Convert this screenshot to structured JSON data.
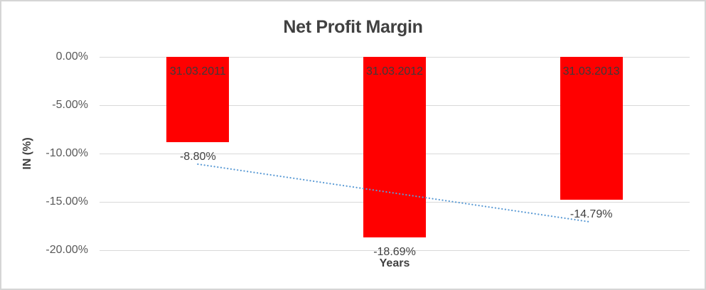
{
  "chart_data": {
    "type": "bar",
    "title": "Net Profit Margin",
    "xlabel": "Years",
    "ylabel": "IN (%)",
    "categories": [
      "31.03.2011",
      "31.03.2012",
      "31.03.2013"
    ],
    "values": [
      -8.8,
      -18.69,
      -14.79
    ],
    "value_labels": [
      "-8.80%",
      "-18.69%",
      "-14.79%"
    ],
    "ylim": [
      -20,
      0
    ],
    "yticks": [
      {
        "value": 0,
        "label": "0.00%"
      },
      {
        "value": -5,
        "label": "-5.00%"
      },
      {
        "value": -10,
        "label": "-10.00%"
      },
      {
        "value": -15,
        "label": "-15.00%"
      },
      {
        "value": -20,
        "label": "-20.00%"
      }
    ],
    "grid": true,
    "legend": "none",
    "bar_color": "#ff0000",
    "trendline": {
      "type": "linear",
      "style": "dotted",
      "color": "#5b9bd5",
      "start_value": -11.1,
      "end_value": -17.09
    }
  },
  "colors": {
    "grid": "#d9d9d9",
    "title_text": "#404040",
    "tick_text": "#595959",
    "label_text": "#404040",
    "category_text": "#3b3b3b",
    "frame_border": "#d5d5d5"
  }
}
